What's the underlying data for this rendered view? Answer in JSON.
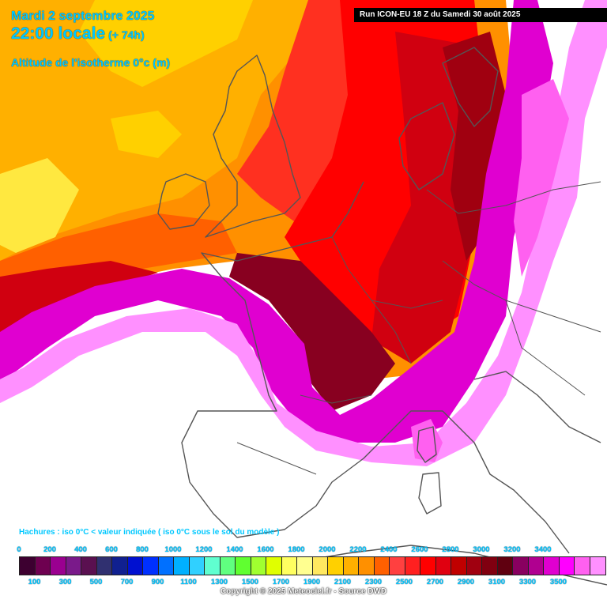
{
  "header": {
    "date": "Mardi 2 septembre 2025",
    "time": "22:00 locale",
    "lead": "(+ 74h)",
    "parameter": "Altitude de l'isotherme 0°c (m)"
  },
  "run": {
    "label": "Run ICON-EU 18 Z du Samedi 30 août 2025"
  },
  "note": {
    "hatch": "Hachures : iso 0°C < valeur indiquée ( iso 0°C sous le sol du modèle )"
  },
  "legend": {
    "top_labels": [
      "0",
      "200",
      "400",
      "600",
      "800",
      "1000",
      "1200",
      "1400",
      "1600",
      "1800",
      "2000",
      "2200",
      "2400",
      "2600",
      "2800",
      "3000",
      "3200",
      "3400"
    ],
    "bottom_labels": [
      "100",
      "300",
      "500",
      "700",
      "900",
      "1100",
      "1300",
      "1500",
      "1700",
      "1900",
      "2100",
      "2300",
      "2500",
      "2700",
      "2900",
      "3100",
      "3300",
      "3500"
    ],
    "colors": [
      "#3d0030",
      "#6e0050",
      "#9a0090",
      "#7a1a8a",
      "#5a1050",
      "#303070",
      "#102090",
      "#0010d0",
      "#0030ff",
      "#0070ff",
      "#00b0ff",
      "#30d0ff",
      "#60ffd0",
      "#60ff80",
      "#60ff30",
      "#a0ff30",
      "#e0ff00",
      "#ffff60",
      "#ffff90",
      "#ffe860",
      "#ffd000",
      "#ffb000",
      "#ff9000",
      "#ff6000",
      "#ff4040",
      "#ff2020",
      "#ff0000",
      "#e00010",
      "#c00000",
      "#a00010",
      "#800010",
      "#600010",
      "#880060",
      "#b00090",
      "#e000d0",
      "#ff00ff",
      "#ff60f0",
      "#ff90ff"
    ]
  },
  "copyright": "Copyright © 2025 Meteociel.fr - Source DWD",
  "map_colors": {
    "background": "#ffffff",
    "borders": "#555555",
    "field": [
      "#ffe840",
      "#ffd000",
      "#ffb000",
      "#ff9000",
      "#ff6000",
      "#ff3020",
      "#ff0000",
      "#d00010",
      "#a00010",
      "#880020",
      "#e000d0",
      "#ff60f0",
      "#ff90ff"
    ]
  }
}
